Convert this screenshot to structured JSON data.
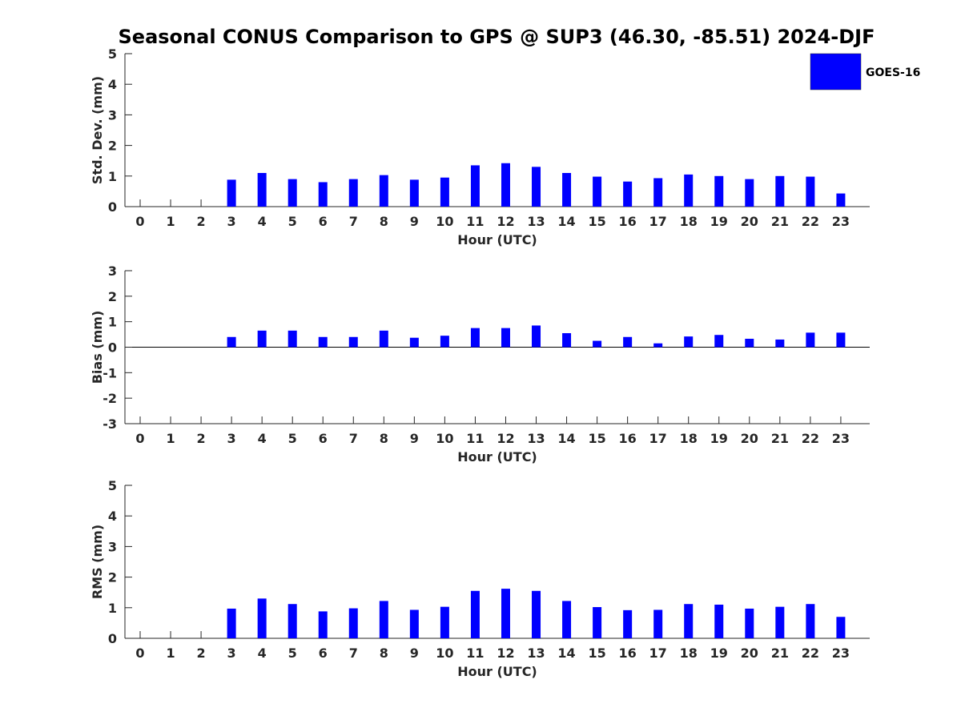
{
  "chart_data": [
    {
      "type": "bar",
      "title": "Seasonal CONUS Comparison to GPS @ SUP3 (46.30, -85.51) 2024-DJF",
      "xlabel": "Hour (UTC)",
      "ylabel": "Std. Dev. (mm)",
      "categories": [
        "0",
        "1",
        "2",
        "3",
        "4",
        "5",
        "6",
        "7",
        "8",
        "9",
        "10",
        "11",
        "12",
        "13",
        "14",
        "15",
        "16",
        "17",
        "18",
        "19",
        "20",
        "21",
        "22",
        "23"
      ],
      "ylim": [
        0,
        5
      ],
      "yticks": [
        "0",
        "1",
        "2",
        "3",
        "4",
        "5"
      ],
      "series": [
        {
          "name": "GOES-16",
          "values": [
            null,
            null,
            null,
            0.88,
            1.1,
            0.9,
            0.8,
            0.9,
            1.03,
            0.88,
            0.95,
            1.35,
            1.42,
            1.3,
            1.1,
            0.98,
            0.82,
            0.93,
            1.05,
            1.0,
            0.9,
            1.0,
            0.98,
            0.43
          ]
        }
      ],
      "legend": "top-right",
      "grid": false
    },
    {
      "type": "bar",
      "xlabel": "Hour (UTC)",
      "ylabel": "Bias (mm)",
      "categories": [
        "0",
        "1",
        "2",
        "3",
        "4",
        "5",
        "6",
        "7",
        "8",
        "9",
        "10",
        "11",
        "12",
        "13",
        "14",
        "15",
        "16",
        "17",
        "18",
        "19",
        "20",
        "21",
        "22",
        "23"
      ],
      "ylim": [
        -3,
        3
      ],
      "yticks": [
        "-3",
        "-2",
        "-1",
        "0",
        "1",
        "2",
        "3"
      ],
      "series": [
        {
          "name": "GOES-16",
          "values": [
            null,
            null,
            null,
            0.4,
            0.65,
            0.65,
            0.4,
            0.4,
            0.65,
            0.37,
            0.45,
            0.75,
            0.75,
            0.85,
            0.55,
            0.25,
            0.4,
            0.15,
            0.42,
            0.48,
            0.33,
            0.3,
            0.57,
            0.57
          ]
        }
      ],
      "grid": false
    },
    {
      "type": "bar",
      "xlabel": "Hour (UTC)",
      "ylabel": "RMS (mm)",
      "categories": [
        "0",
        "1",
        "2",
        "3",
        "4",
        "5",
        "6",
        "7",
        "8",
        "9",
        "10",
        "11",
        "12",
        "13",
        "14",
        "15",
        "16",
        "17",
        "18",
        "19",
        "20",
        "21",
        "22",
        "23"
      ],
      "ylim": [
        0,
        5
      ],
      "yticks": [
        "0",
        "1",
        "2",
        "3",
        "4",
        "5"
      ],
      "series": [
        {
          "name": "GOES-16",
          "values": [
            null,
            null,
            null,
            0.97,
            1.3,
            1.12,
            0.88,
            0.98,
            1.22,
            0.93,
            1.03,
            1.55,
            1.62,
            1.55,
            1.22,
            1.02,
            0.92,
            0.93,
            1.12,
            1.1,
            0.97,
            1.03,
            1.12,
            0.7
          ]
        }
      ],
      "grid": false
    }
  ],
  "colors": {
    "bar": "#0000ff",
    "axis": "#262626"
  }
}
